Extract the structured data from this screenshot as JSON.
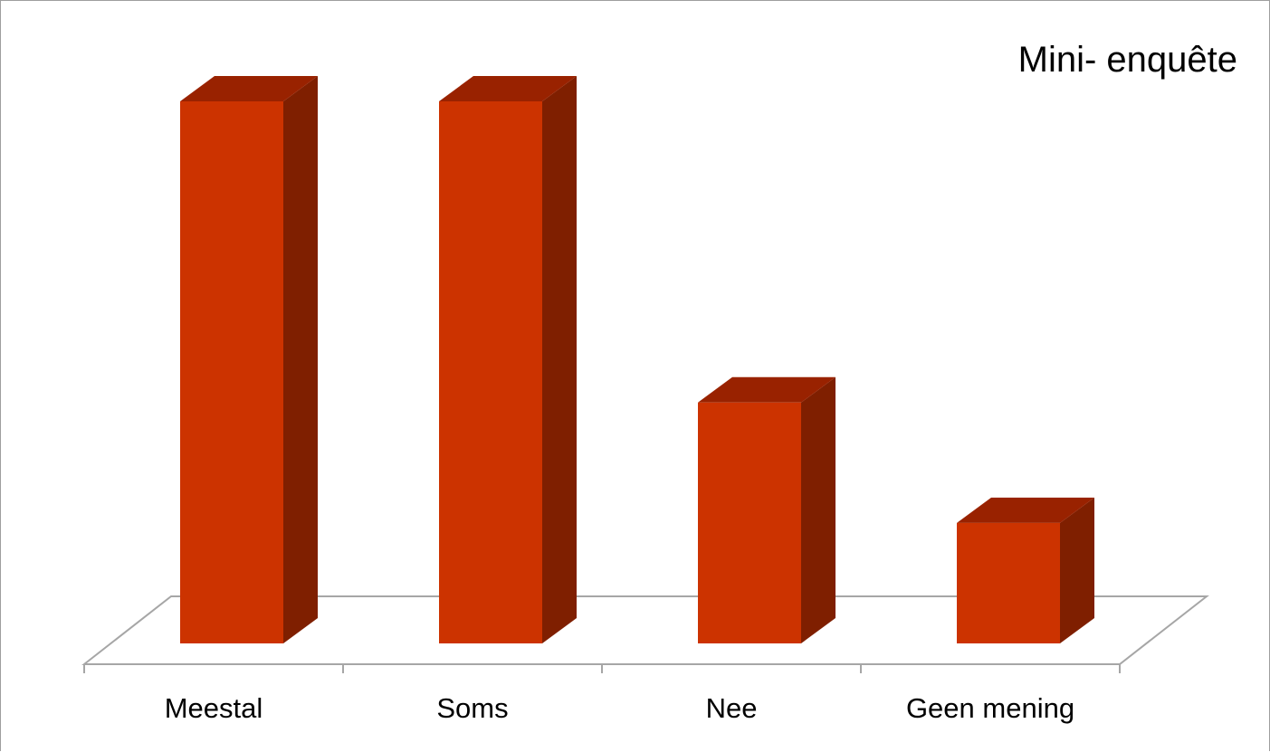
{
  "chart_data": {
    "type": "bar",
    "style": "3d-column",
    "title": "Mini- enquête",
    "legend_position": "top-right",
    "categories": [
      "Meestal",
      "Soms",
      "Nee",
      "Geen mening"
    ],
    "values": [
      9,
      9,
      4,
      2
    ],
    "xlabel": "",
    "ylabel": "",
    "ylim": [
      0,
      9
    ],
    "grid": false,
    "colors": {
      "bar_front": "#cc3300",
      "bar_top": "#992200",
      "bar_side": "#7f1f00",
      "floor_line": "#a6a6a6"
    }
  }
}
